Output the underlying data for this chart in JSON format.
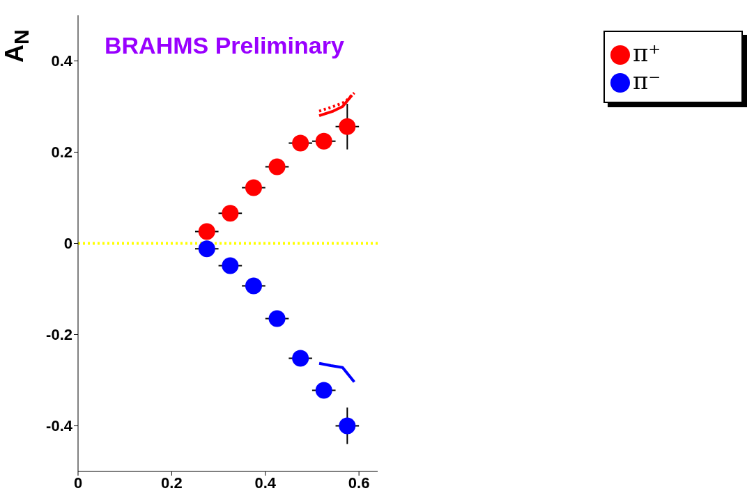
{
  "chart_data": {
    "type": "scatter",
    "ylabel": "A$_{N}$",
    "annotations": [
      "BRAHMS Preliminary"
    ],
    "xlim": [
      0,
      0.64
    ],
    "xticks": [
      0,
      0.2,
      0.4,
      0.6
    ],
    "ylim": [
      -0.5,
      0.5
    ],
    "yticks": [
      -0.4,
      -0.2,
      0,
      0.2,
      0.4
    ],
    "legend": "top right",
    "ref_lines": [
      {
        "axis": "y",
        "value": 0,
        "color": "#ffff00",
        "line_style": "dotted"
      }
    ],
    "series": [
      {
        "name": "π⁺",
        "marker": "circle",
        "color": "#ff0000",
        "x": [
          0.275,
          0.325,
          0.375,
          0.425,
          0.475,
          0.525,
          0.575
        ],
        "values": [
          0.026,
          0.066,
          0.122,
          0.168,
          0.22,
          0.224,
          0.256
        ],
        "errors": [
          null,
          null,
          null,
          null,
          null,
          null,
          0.05
        ],
        "xerrors": [
          0.025,
          0.025,
          0.025,
          0.025,
          0.025,
          0.025,
          0.025
        ]
      },
      {
        "name": "π⁻",
        "marker": "circle",
        "color": "#0000ff",
        "x": [
          0.275,
          0.325,
          0.375,
          0.425,
          0.475,
          0.525,
          0.575
        ],
        "values": [
          -0.012,
          -0.049,
          -0.093,
          -0.165,
          -0.252,
          -0.322,
          -0.4
        ],
        "errors": [
          null,
          null,
          null,
          null,
          null,
          null,
          0.04
        ],
        "xerrors": [
          0.025,
          0.025,
          0.025,
          0.025,
          0.025,
          0.025,
          0.025
        ]
      },
      {
        "type": "line",
        "color": "#ff0000",
        "line_style": "solid",
        "x": [
          0.515,
          0.545,
          0.565,
          0.585
        ],
        "values": [
          0.28,
          0.29,
          0.3,
          0.325
        ]
      },
      {
        "type": "line",
        "color": "#ff0000",
        "line_style": "dotted",
        "x": [
          0.515,
          0.545,
          0.57,
          0.59
        ],
        "values": [
          0.29,
          0.3,
          0.31,
          0.33
        ]
      },
      {
        "type": "line",
        "color": "#0000ff",
        "line_style": "solid",
        "x": [
          0.515,
          0.54,
          0.565,
          0.59
        ],
        "values": [
          -0.263,
          -0.268,
          -0.272,
          -0.304
        ]
      }
    ]
  }
}
